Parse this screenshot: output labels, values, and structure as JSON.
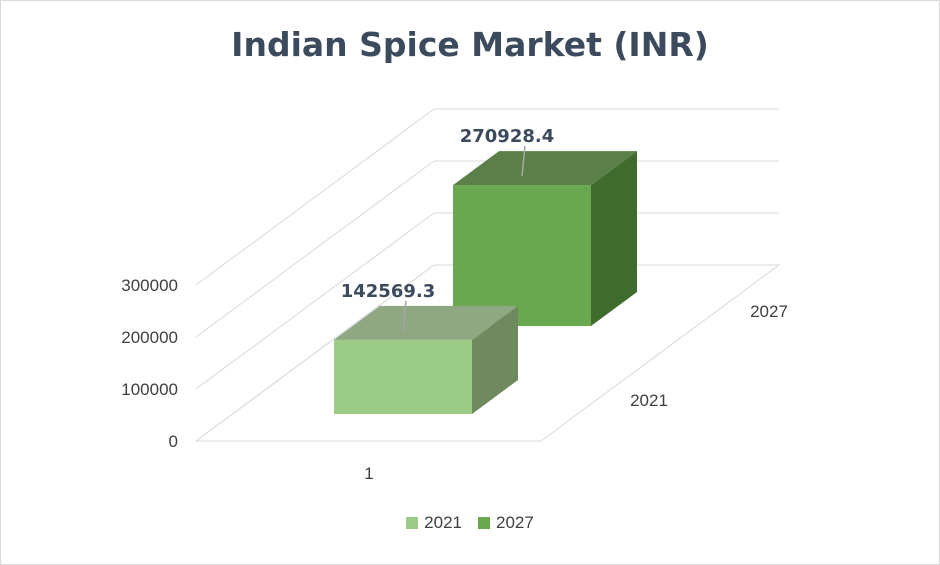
{
  "chart_data": {
    "type": "bar",
    "subtype": "3d-column",
    "title": "Indian Spice Market (INR)",
    "categories": [
      "1"
    ],
    "depth_labels": [
      "2021",
      "2027"
    ],
    "series": [
      {
        "name": "2021",
        "values": [
          142569.3
        ],
        "data_label": "142569.3",
        "color": "#9ccb86",
        "side_color": "#6e8a5e",
        "top_color": "#8fa882"
      },
      {
        "name": "2027",
        "values": [
          270928.4
        ],
        "data_label": "270928.4",
        "color": "#6aa84f",
        "side_color": "#3f6b2c",
        "top_color": "#5a7f48"
      }
    ],
    "y_ticks": [
      "0",
      "100000",
      "200000",
      "300000"
    ],
    "ylim": [
      0,
      300000
    ],
    "grid": true,
    "legend_position": "bottom"
  }
}
